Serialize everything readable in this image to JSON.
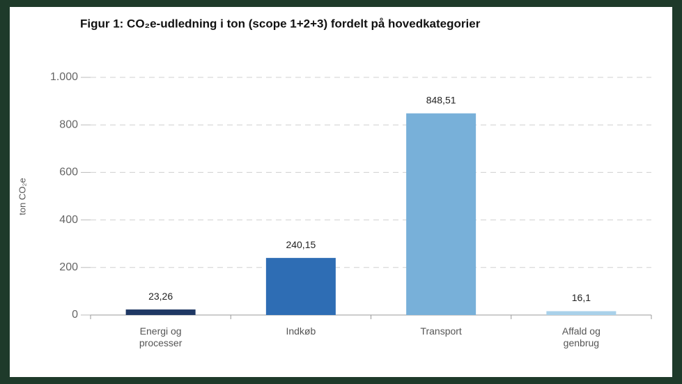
{
  "chart_data": {
    "type": "bar",
    "title": "Figur 1: CO₂e-udledning i ton (scope 1+2+3) fordelt på hovedkategorier",
    "ylabel": "ton CO₂e",
    "categories": [
      "Energi og processer",
      "Indkøb",
      "Transport",
      "Affald og genbrug"
    ],
    "values": [
      23.26,
      240.15,
      848.51,
      16.1
    ],
    "value_labels": [
      "23,26",
      "240,15",
      "848,51",
      "16,1"
    ],
    "colors": [
      "#1f3864",
      "#2e6db4",
      "#78b0d9",
      "#a9d1ea"
    ],
    "ylim": [
      0,
      1000
    ],
    "yticks": [
      0,
      200,
      400,
      600,
      800,
      {
        "value": 1000,
        "label": "1.000"
      }
    ],
    "grid": true
  }
}
